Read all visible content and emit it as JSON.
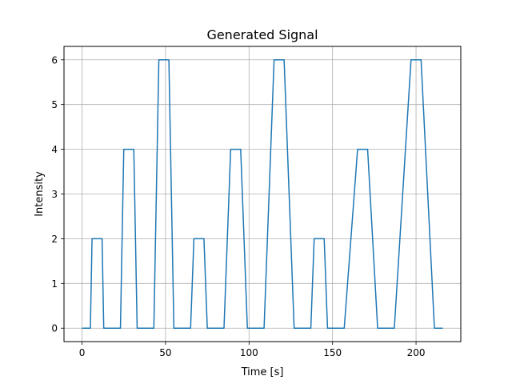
{
  "chart_data": {
    "type": "line",
    "title": "Generated Signal",
    "xlabel": "Time [s]",
    "ylabel": "Intensity",
    "xlim": [
      -10.8,
      226.8
    ],
    "ylim": [
      -0.3,
      6.3
    ],
    "x_ticks": [
      0,
      50,
      100,
      150,
      200
    ],
    "y_ticks": [
      0,
      1,
      2,
      3,
      4,
      5,
      6
    ],
    "grid": true,
    "line_color": "#1f77b4",
    "series": [
      {
        "x": [
          0,
          5,
          6,
          12,
          13,
          23,
          25,
          31,
          33,
          43,
          46,
          52,
          55,
          65,
          67,
          73,
          75,
          85,
          89,
          95,
          99,
          109,
          115,
          121,
          127,
          137,
          139,
          145,
          147,
          157,
          165,
          171,
          177,
          187,
          197,
          203,
          211,
          216
        ],
        "y": [
          0,
          0,
          2,
          2,
          0,
          0,
          4,
          4,
          0,
          0,
          6,
          6,
          0,
          0,
          2,
          2,
          0,
          0,
          4,
          4,
          0,
          0,
          6,
          6,
          0,
          0,
          2,
          2,
          0,
          0,
          4,
          4,
          0,
          0,
          6,
          6,
          0,
          0
        ]
      }
    ]
  }
}
